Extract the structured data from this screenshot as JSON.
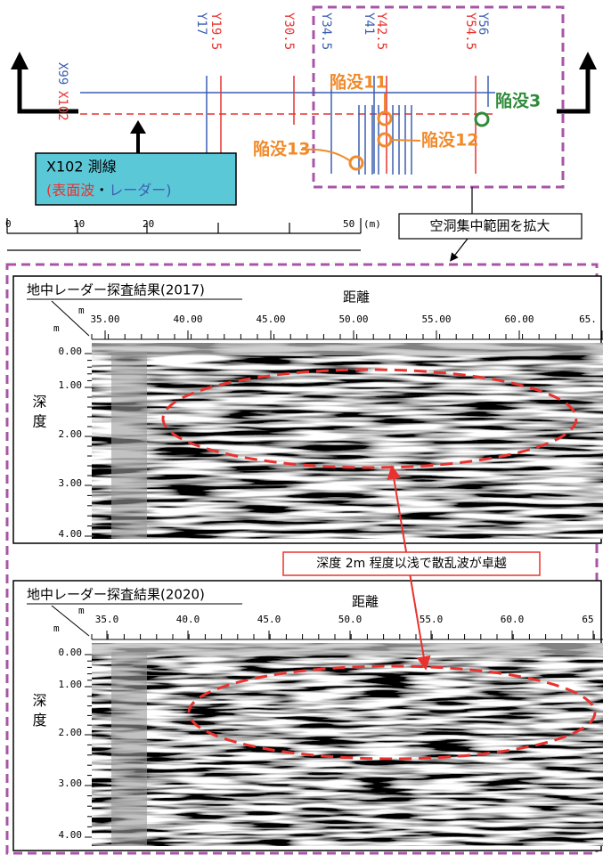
{
  "map": {
    "lines": [
      "X99",
      "X102",
      "Y17",
      "Y19.5",
      "Y30.5",
      "Y34.5",
      "Y41",
      "Y42.5",
      "Y54.5",
      "Y56"
    ],
    "sinkholes": [
      "陥没11",
      "陥没12",
      "陥没13",
      "陥没3"
    ],
    "survey_box": {
      "title": "X102 測線",
      "open": "(",
      "surface": "表面波",
      "sep": "・",
      "radar": "レーダー",
      "close": ")"
    },
    "scale": {
      "ticks": [
        "0",
        "10",
        "20",
        "50"
      ],
      "unit": "(m)"
    },
    "zoom_label": "空洞集中範囲を拡大"
  },
  "panels": [
    {
      "title": "地中レーダー探査結果(2017)",
      "x_label": "距離",
      "x_unit": "m",
      "y_unit": "m",
      "y_label": "深度",
      "x_ticks": [
        "35.00",
        "40.00",
        "45.00",
        "50.00",
        "55.00",
        "60.00",
        "65."
      ],
      "y_ticks": [
        "0.00",
        "1.00",
        "2.00",
        "3.00",
        "4.00"
      ]
    },
    {
      "title": "地中レーダー探査結果(2020)",
      "x_label": "距離",
      "x_unit": "m",
      "y_unit": "m",
      "y_label": "深度",
      "x_ticks": [
        "35.0",
        "40.0",
        "45.0",
        "50.0",
        "55.0",
        "60.0",
        "65"
      ],
      "y_ticks": [
        "0.00",
        "1.00",
        "2.00",
        "3.00",
        "4.00"
      ]
    }
  ],
  "note": "深度 2m 程度以浅で散乱波が卓越"
}
